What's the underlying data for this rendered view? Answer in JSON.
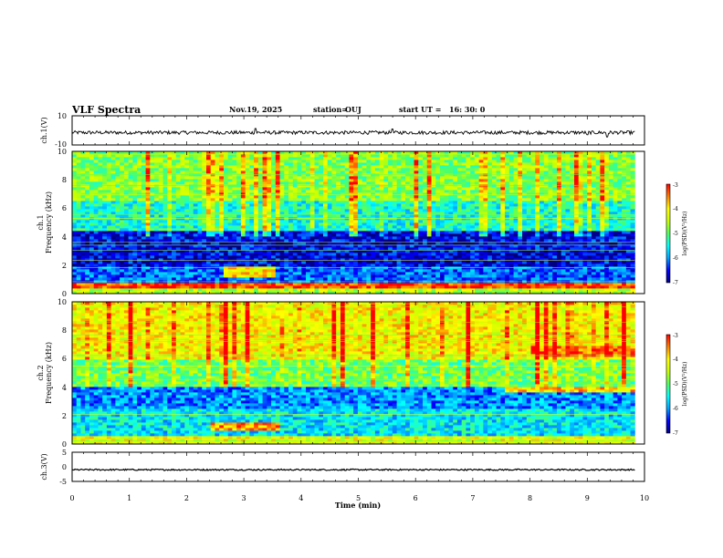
{
  "header": {
    "title": "VLF Spectra",
    "date": "Nov.19, 2025",
    "station_label": "station=",
    "station": "OUJ",
    "start_label": "start  UT  =",
    "start_time": "16: 30: 0"
  },
  "colors": {
    "colormap": [
      "#00007f",
      "#0000ff",
      "#00a0ff",
      "#00ffff",
      "#50ff60",
      "#c8ff00",
      "#ffff00",
      "#ff8000",
      "#ff0000"
    ],
    "trace": "#000000"
  },
  "chart_data": [
    {
      "type": "line",
      "name": "ch1-waveform",
      "ylabel": "ch.1(V)",
      "ylim": [
        -10,
        10
      ],
      "yticks": [
        "10",
        "-10"
      ],
      "baseline": -1.5,
      "noise_amplitude": 1.2,
      "spikes": [
        {
          "t": 3.2,
          "v": 1.3
        },
        {
          "t": 5.6,
          "v": 1.0
        },
        {
          "t": 9.35,
          "v": -4.5
        },
        {
          "t": 9.0,
          "v": -3.0
        }
      ]
    },
    {
      "type": "heatmap",
      "name": "ch1-spectrogram",
      "ylabel": "ch.1\nFrequency (kHz)",
      "ylabel_line1": "ch.1",
      "ylabel_line2": "Frequency (kHz)",
      "ylim": [
        0,
        10
      ],
      "yticks": [
        "0",
        "2",
        "4",
        "6",
        "8",
        "10"
      ],
      "colorbar": {
        "label": "log(PSD)(V²/Hz)",
        "range": [
          -7,
          -3
        ],
        "ticks": [
          "-3",
          "-4",
          "-5",
          "-6",
          "-7"
        ]
      },
      "bands": [
        {
          "f0": 0.0,
          "f1": 0.3,
          "level": -4.5
        },
        {
          "f0": 0.3,
          "f1": 0.8,
          "level": -3.2
        },
        {
          "f0": 0.8,
          "f1": 2.0,
          "level": -6.2
        },
        {
          "f0": 2.0,
          "f1": 4.5,
          "level": -6.6
        },
        {
          "f0": 4.5,
          "f1": 6.5,
          "level": -5.4
        },
        {
          "f0": 6.5,
          "f1": 10.0,
          "level": -4.8
        }
      ],
      "events": [
        {
          "t0": 2.6,
          "t1": 3.5,
          "f0": 1.2,
          "f1": 2.0,
          "level": -4.0
        }
      ]
    },
    {
      "type": "heatmap",
      "name": "ch2-spectrogram",
      "ylabel_line1": "ch.2",
      "ylabel_line2": "Frequency (kHz)",
      "ylim": [
        0,
        10
      ],
      "yticks": [
        "0",
        "2",
        "4",
        "6",
        "8",
        "10"
      ],
      "colorbar": {
        "label": "log(PSD)(V²/Hz)",
        "range": [
          -7,
          -3
        ],
        "ticks": [
          "-3",
          "-4",
          "-5",
          "-6",
          "-7"
        ]
      },
      "bands": [
        {
          "f0": 0.0,
          "f1": 0.5,
          "level": -4.2
        },
        {
          "f0": 0.5,
          "f1": 2.5,
          "level": -5.6
        },
        {
          "f0": 2.5,
          "f1": 4.0,
          "level": -6.0
        },
        {
          "f0": 4.0,
          "f1": 6.0,
          "level": -4.9
        },
        {
          "f0": 6.0,
          "f1": 10.0,
          "level": -4.1
        }
      ],
      "events": [
        {
          "t0": 2.4,
          "t1": 3.6,
          "f0": 1.0,
          "f1": 1.6,
          "level": -3.6
        },
        {
          "t0": 8.0,
          "t1": 9.8,
          "f0": 6.2,
          "f1": 7.0,
          "level": -3.4
        },
        {
          "t0": 7.5,
          "t1": 9.8,
          "f0": 3.6,
          "f1": 4.0,
          "level": -3.8
        }
      ]
    },
    {
      "type": "line",
      "name": "ch3-waveform",
      "ylabel": "ch.3(V)",
      "ylim": [
        -5,
        5
      ],
      "yticks": [
        "5",
        "0",
        "-5"
      ],
      "baseline": -1.0,
      "noise_amplitude": 0.25
    }
  ],
  "x_axis": {
    "label": "Time  (min)",
    "range": [
      0,
      10
    ],
    "data_end": 9.83,
    "ticks": [
      "0",
      "1",
      "2",
      "3",
      "4",
      "5",
      "6",
      "7",
      "8",
      "9",
      "10"
    ]
  }
}
